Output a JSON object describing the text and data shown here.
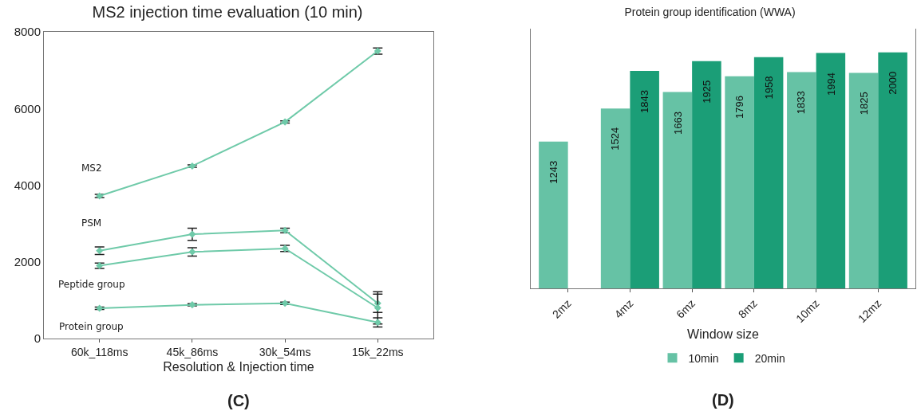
{
  "chart_data": [
    {
      "type": "line",
      "title": "MS2 injection time evaluation (10 min)",
      "xlabel": "Resolution & Injection time",
      "categories": [
        "60k_118ms",
        "45k_86ms",
        "30k_54ms",
        "15k_22ms"
      ],
      "series": [
        {
          "name": "MS2",
          "color": "#6fcaa9",
          "values": [
            3720,
            4500,
            5650,
            7500
          ],
          "errors": [
            40,
            30,
            30,
            80
          ]
        },
        {
          "name": "PSM",
          "color": "#6fcaa9",
          "values": [
            2290,
            2720,
            2820,
            920
          ],
          "errors": [
            100,
            160,
            60,
            240
          ]
        },
        {
          "name": "Peptide group",
          "color": "#6fcaa9",
          "values": [
            1900,
            2260,
            2350,
            800
          ],
          "errors": [
            70,
            110,
            80,
            420
          ]
        },
        {
          "name": "Protein group",
          "color": "#6fcaa9",
          "values": [
            790,
            880,
            920,
            420
          ],
          "errors": [
            30,
            30,
            30,
            120
          ]
        }
      ],
      "ylim": [
        0,
        8000
      ],
      "yticks": [
        0,
        2000,
        4000,
        6000,
        8000
      ],
      "grid": false,
      "legend": false,
      "marker": "diamond",
      "line_style": "solid",
      "annotations": [
        "(C)"
      ]
    },
    {
      "type": "bar",
      "title": "Protein group identification (WWA)",
      "xlabel": "Window size",
      "categories": [
        "2mz",
        "4mz",
        "6mz",
        "8mz",
        "10mz",
        "12mz"
      ],
      "series": [
        {
          "name": "10min",
          "color": "#66c2a5",
          "values": [
            1243,
            1524,
            1663,
            1796,
            1833,
            1825
          ]
        },
        {
          "name": "20min",
          "color": "#1b9e77",
          "values": [
            null,
            1843,
            1925,
            1958,
            1994,
            2000
          ]
        }
      ],
      "ylim": [
        0,
        2200
      ],
      "tick_labels": "x",
      "data_labels": true,
      "grid": false,
      "legend": "bottom",
      "annotations": [
        "(D)"
      ]
    }
  ]
}
